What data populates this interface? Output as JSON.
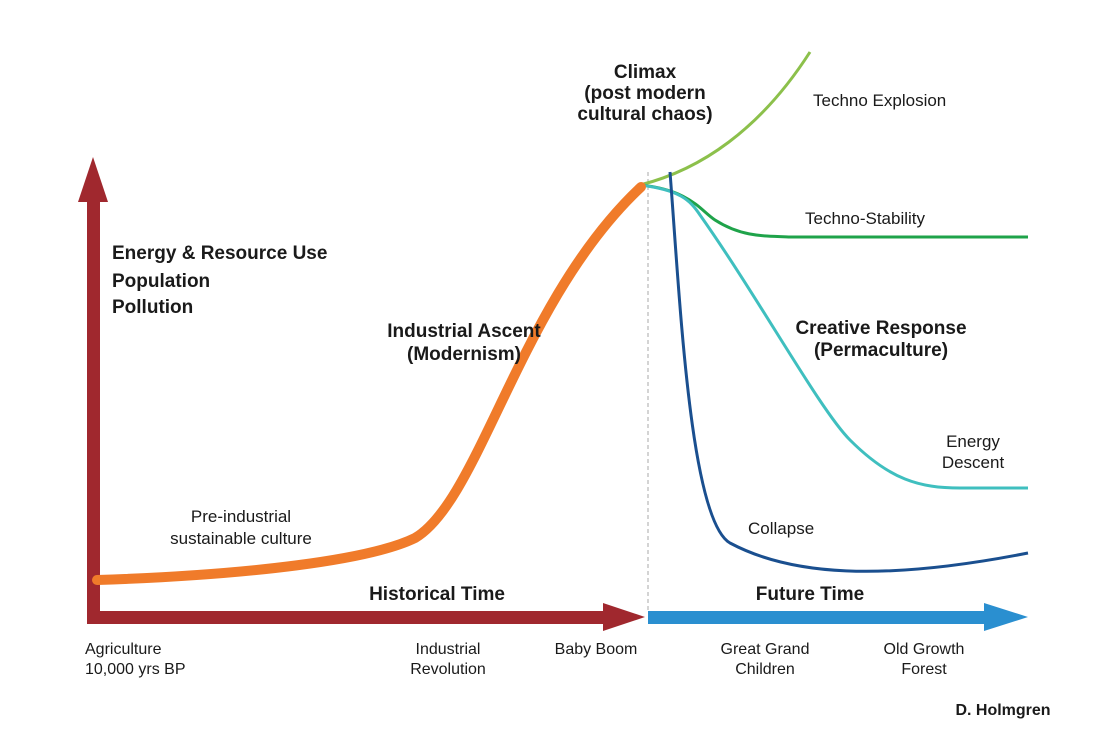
{
  "y_axis": {
    "lines": [
      "Energy & Resource Use",
      "Population",
      "Pollution"
    ]
  },
  "time_axes": {
    "historical": "Historical Time",
    "future": "Future Time"
  },
  "stages": {
    "climax": [
      "Climax",
      "(post modern",
      "cultural chaos)"
    ],
    "industrial_ascent": [
      "Industrial Ascent",
      "(Modernism)"
    ],
    "pre_industrial": [
      "Pre-industrial",
      "sustainable culture"
    ]
  },
  "scenarios": {
    "techno_explosion": "Techno Explosion",
    "techno_stability": "Techno-Stability",
    "creative_response": [
      "Creative Response",
      "(Permaculture)"
    ],
    "energy_descent": [
      "Energy",
      "Descent"
    ],
    "collapse": "Collapse"
  },
  "x_labels": {
    "agriculture": [
      "Agriculture",
      "10,000 yrs BP"
    ],
    "industrial_revolution": [
      "Industrial",
      "Revolution"
    ],
    "baby_boom": "Baby Boom",
    "great_grand_children": [
      "Great Grand",
      "Children"
    ],
    "old_growth_forest": [
      "Old Growth",
      "Forest"
    ]
  },
  "credit": "D. Holmgren"
}
